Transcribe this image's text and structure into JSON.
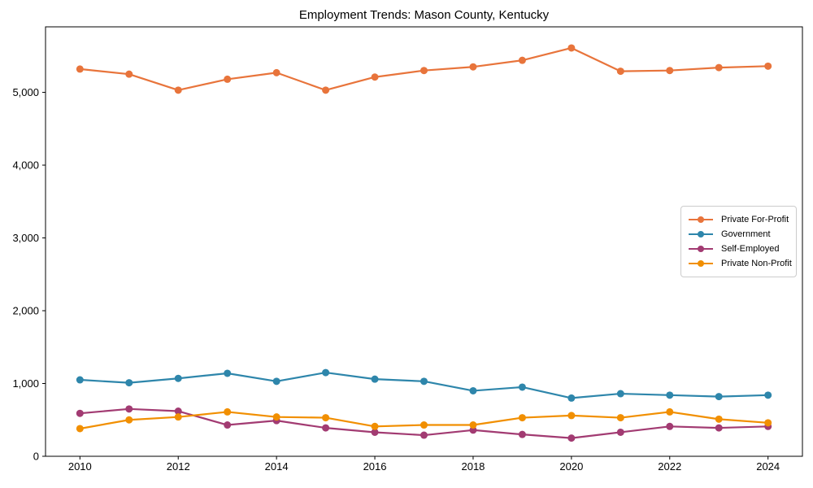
{
  "title": "Employment Trends: Mason County, Kentucky",
  "chart_data": {
    "type": "line",
    "title": "Employment Trends: Mason County, Kentucky",
    "xlabel": "",
    "ylabel": "",
    "x": [
      2010,
      2011,
      2012,
      2013,
      2014,
      2015,
      2016,
      2017,
      2018,
      2019,
      2020,
      2021,
      2022,
      2023,
      2024
    ],
    "series": [
      {
        "name": "Private For-Profit",
        "color": "#E8743B",
        "values": [
          5320,
          5250,
          5030,
          5180,
          5270,
          5030,
          5210,
          5300,
          5350,
          5440,
          5610,
          5290,
          5300,
          5340,
          5360
        ]
      },
      {
        "name": "Government",
        "color": "#2E86AB",
        "values": [
          1050,
          1010,
          1070,
          1140,
          1030,
          1150,
          1060,
          1030,
          900,
          950,
          800,
          860,
          840,
          820,
          840
        ]
      },
      {
        "name": "Self-Employed",
        "color": "#A23B72",
        "values": [
          590,
          650,
          620,
          430,
          490,
          390,
          330,
          290,
          360,
          300,
          250,
          330,
          410,
          390,
          410
        ]
      },
      {
        "name": "Private Non-Profit",
        "color": "#F18F01",
        "values": [
          380,
          500,
          540,
          610,
          540,
          530,
          410,
          430,
          430,
          530,
          560,
          530,
          610,
          510,
          460
        ]
      }
    ],
    "xlim": [
      2009.3,
      2024.7
    ],
    "ylim": [
      0,
      5900
    ],
    "xticks": {
      "values": [
        2010,
        2012,
        2014,
        2016,
        2018,
        2020,
        2022,
        2024
      ],
      "labels": [
        "2010",
        "2012",
        "2014",
        "2016",
        "2018",
        "2020",
        "2022",
        "2024"
      ]
    },
    "yticks": {
      "values": [
        0,
        1000,
        2000,
        3000,
        4000,
        5000
      ],
      "labels": [
        "0",
        "1,000",
        "2,000",
        "3,000",
        "4,000",
        "5,000"
      ]
    },
    "grid": false,
    "legend_position": "center-right",
    "spine_color": "#000000",
    "tick_color": "#000000",
    "marker": "circle",
    "marker_radius": 4.5,
    "line_width": 2.2
  }
}
